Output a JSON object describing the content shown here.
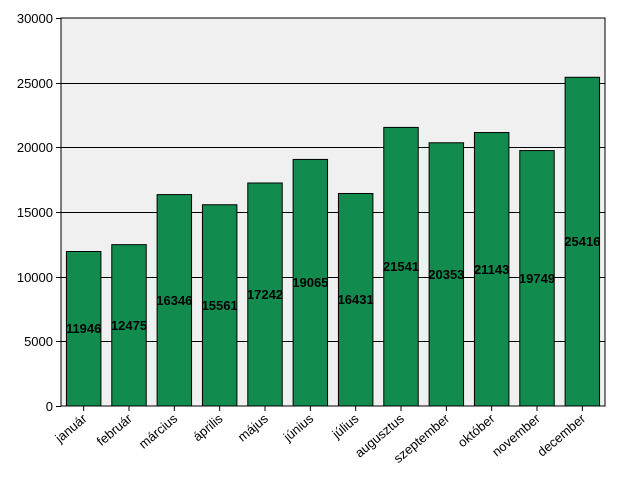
{
  "chart_data": {
    "type": "bar",
    "categories": [
      "január",
      "február",
      "március",
      "április",
      "május",
      "június",
      "július",
      "augusztus",
      "szeptember",
      "október",
      "november",
      "december"
    ],
    "values": [
      11946,
      12475,
      16346,
      15561,
      17242,
      19065,
      16431,
      21541,
      20353,
      21143,
      19749,
      25416
    ],
    "data_labels": [
      "11946",
      "12475",
      "16346",
      "15561",
      "17242",
      "19065",
      "16431",
      "21541",
      "20353",
      "21143",
      "19749",
      "25416"
    ],
    "title": "",
    "xlabel": "",
    "ylabel": "",
    "ylim": [
      0,
      30000
    ],
    "yticks": [
      0,
      5000,
      10000,
      15000,
      20000,
      25000,
      30000
    ],
    "ytick_labels": [
      "0",
      "5000",
      "10000",
      "15000",
      "20000",
      "25000",
      "30000"
    ],
    "grid": "horizontal",
    "legend": "none",
    "colors": {
      "bar_fill": "#118c4e",
      "bar_stroke": "#000000",
      "plot_background": "#f0f0f0",
      "gridline": "#000000"
    }
  }
}
